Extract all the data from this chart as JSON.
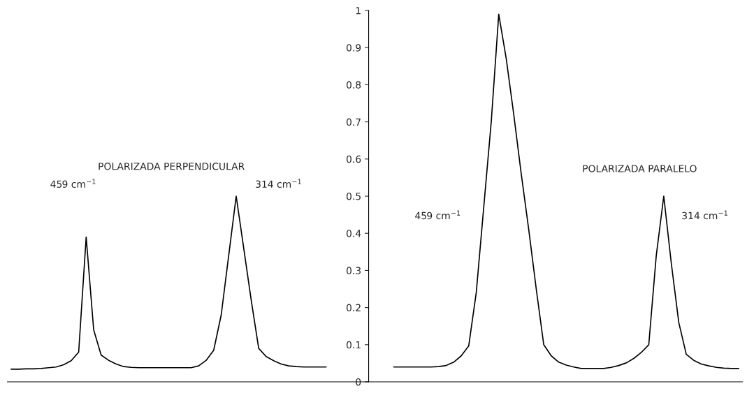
{
  "chart_data": {
    "type": "line",
    "tick_labels": "y",
    "categories": [
      null,
      null,
      null,
      null,
      null,
      null,
      null,
      null,
      null,
      null,
      null,
      null,
      null,
      null,
      null,
      null,
      null,
      null,
      null,
      null,
      null,
      null,
      null,
      null,
      null,
      null,
      null,
      null,
      null,
      null,
      null,
      null,
      null,
      null,
      null,
      null,
      null,
      null,
      null,
      null,
      null,
      null,
      null,
      null,
      null,
      null,
      null,
      null,
      null,
      null,
      null,
      null,
      null,
      null,
      null,
      null,
      null,
      null,
      null,
      null,
      null,
      null,
      null,
      null,
      null,
      null,
      null,
      null,
      null,
      null,
      null,
      null,
      null,
      null,
      null,
      null,
      null,
      null,
      null,
      null,
      null,
      null,
      null,
      null,
      null,
      null,
      null,
      null,
      null,
      null,
      null,
      null,
      null,
      null,
      null,
      null,
      null,
      null
    ],
    "series": [
      {
        "color": "#000000",
        "values": [
          0.034,
          0.034,
          0.035,
          0.035,
          0.036,
          0.038,
          0.04,
          0.046,
          0.057,
          0.08,
          0.39,
          0.14,
          0.072,
          0.058,
          0.048,
          0.041,
          0.039,
          0.038,
          0.038,
          0.038,
          0.038,
          0.038,
          0.038,
          0.038,
          0.038,
          0.043,
          0.058,
          0.085,
          0.18,
          0.34,
          0.5,
          0.36,
          0.22,
          0.09,
          0.068,
          0.057,
          0.048,
          0.043,
          0.041,
          0.04,
          0.04,
          0.04,
          0.04,
          null,
          null,
          null,
          null,
          null,
          null,
          null,
          null,
          null,
          null,
          null,
          null,
          null,
          null,
          null,
          null,
          null,
          null,
          null,
          null,
          null,
          null,
          null,
          null,
          null,
          null,
          null,
          null,
          null,
          null,
          null,
          null,
          null,
          null,
          null,
          null,
          null,
          null,
          null,
          null,
          null,
          null,
          null,
          null,
          null,
          null,
          null,
          null,
          null,
          null,
          null,
          null,
          null,
          null,
          null
        ]
      },
      {
        "color": "#000000",
        "values": [
          null,
          null,
          null,
          null,
          null,
          null,
          null,
          null,
          null,
          null,
          null,
          null,
          null,
          null,
          null,
          null,
          null,
          null,
          null,
          null,
          null,
          null,
          null,
          null,
          null,
          null,
          null,
          null,
          null,
          null,
          null,
          null,
          null,
          null,
          null,
          null,
          null,
          null,
          null,
          null,
          null,
          null,
          null,
          null,
          null,
          null,
          null,
          null,
          null,
          null,
          null,
          0.04,
          0.04,
          0.04,
          0.04,
          0.04,
          0.04,
          0.041,
          0.044,
          0.053,
          0.07,
          0.097,
          0.24,
          0.47,
          0.7,
          0.99,
          0.87,
          0.72,
          0.56,
          0.41,
          0.25,
          0.1,
          0.07,
          0.053,
          0.045,
          0.04,
          0.036,
          0.036,
          0.036,
          0.036,
          0.039,
          0.044,
          0.051,
          0.063,
          0.079,
          0.1,
          0.34,
          0.5,
          0.32,
          0.16,
          0.074,
          0.058,
          0.048,
          0.043,
          0.039,
          0.037,
          0.036,
          0.036
        ]
      }
    ],
    "ylim": [
      0,
      1
    ],
    "yticks": [
      0,
      0.1,
      0.2,
      0.3,
      0.4,
      0.5,
      0.6,
      0.7,
      0.8,
      0.9,
      1
    ],
    "annotations": [
      "POLARIZADA PERPENDICULAR",
      "459 cm$^{−1}$",
      "314 cm$^{−1}$",
      "POLARIZADA PARALELO",
      "459 cm$^{−1}$",
      "314 cm$^{−1}$"
    ]
  }
}
